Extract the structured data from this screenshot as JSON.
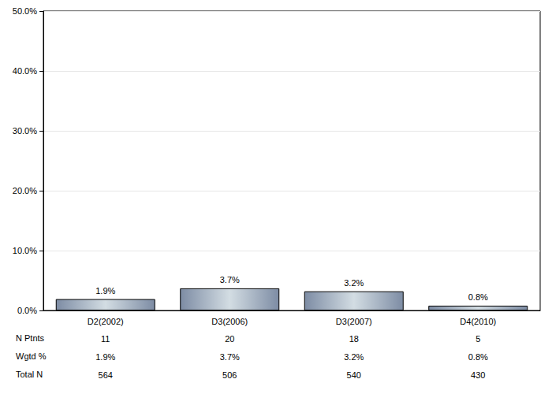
{
  "chart_data": {
    "type": "bar",
    "categories": [
      "D2(2002)",
      "D3(2006)",
      "D3(2007)",
      "D4(2010)"
    ],
    "values": [
      1.9,
      3.7,
      3.2,
      0.8
    ],
    "value_labels": [
      "1.9%",
      "3.7%",
      "3.2%",
      "0.8%"
    ],
    "data_labels": true,
    "ylim": [
      0,
      50
    ],
    "yticks": [
      {
        "value": 0,
        "label": "0.0%"
      },
      {
        "value": 10,
        "label": "10.0%"
      },
      {
        "value": 20,
        "label": "20.0%"
      },
      {
        "value": 30,
        "label": "30.0%"
      },
      {
        "value": 40,
        "label": "40.0%"
      },
      {
        "value": 50,
        "label": "50.0%"
      }
    ],
    "grid": true,
    "table_rows": [
      {
        "label": "N Ptnts",
        "cells": [
          "11",
          "20",
          "18",
          "5"
        ]
      },
      {
        "label": "Wgtd %",
        "cells": [
          "1.9%",
          "3.7%",
          "3.2%",
          "0.8%"
        ]
      },
      {
        "label": "Total N",
        "cells": [
          "564",
          "506",
          "540",
          "430"
        ]
      }
    ]
  }
}
